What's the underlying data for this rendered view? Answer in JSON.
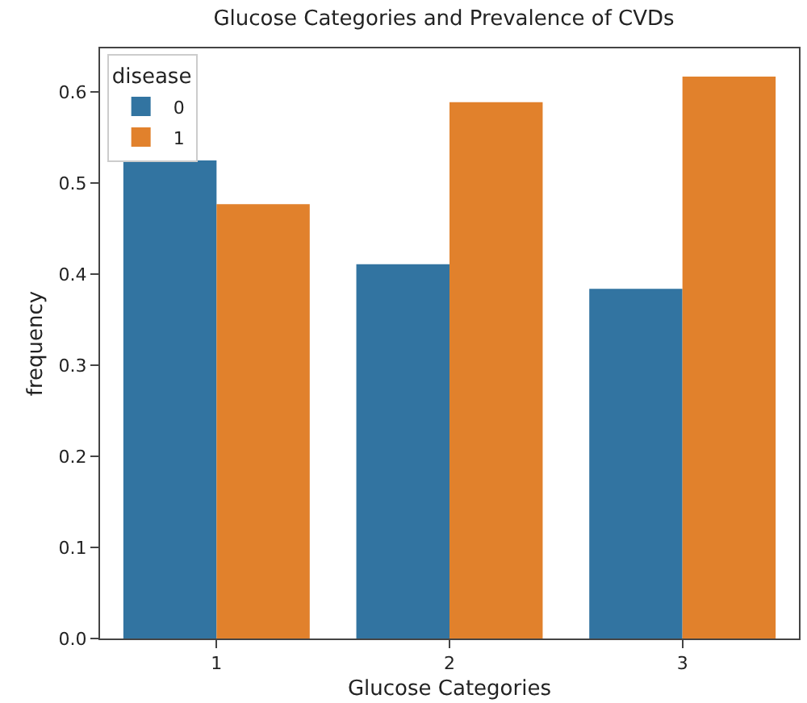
{
  "chart_data": {
    "type": "bar",
    "title": "Glucose Categories and Prevalence of CVDs",
    "xlabel": "Glucose Categories",
    "ylabel": "frequency",
    "legend_title": "disease",
    "categories": [
      "1",
      "2",
      "3"
    ],
    "series": [
      {
        "name": "0",
        "color": "#3274a1",
        "values": [
          0.525,
          0.411,
          0.384
        ]
      },
      {
        "name": "1",
        "color": "#e1812c",
        "values": [
          0.477,
          0.589,
          0.617
        ]
      }
    ],
    "ylim": [
      0,
      0.648
    ],
    "yticks": [
      {
        "value": 0,
        "label": "0.0"
      },
      0.1,
      0.2,
      0.3,
      0.4,
      0.5,
      0.6
    ],
    "grid": false,
    "legend": "top left"
  }
}
